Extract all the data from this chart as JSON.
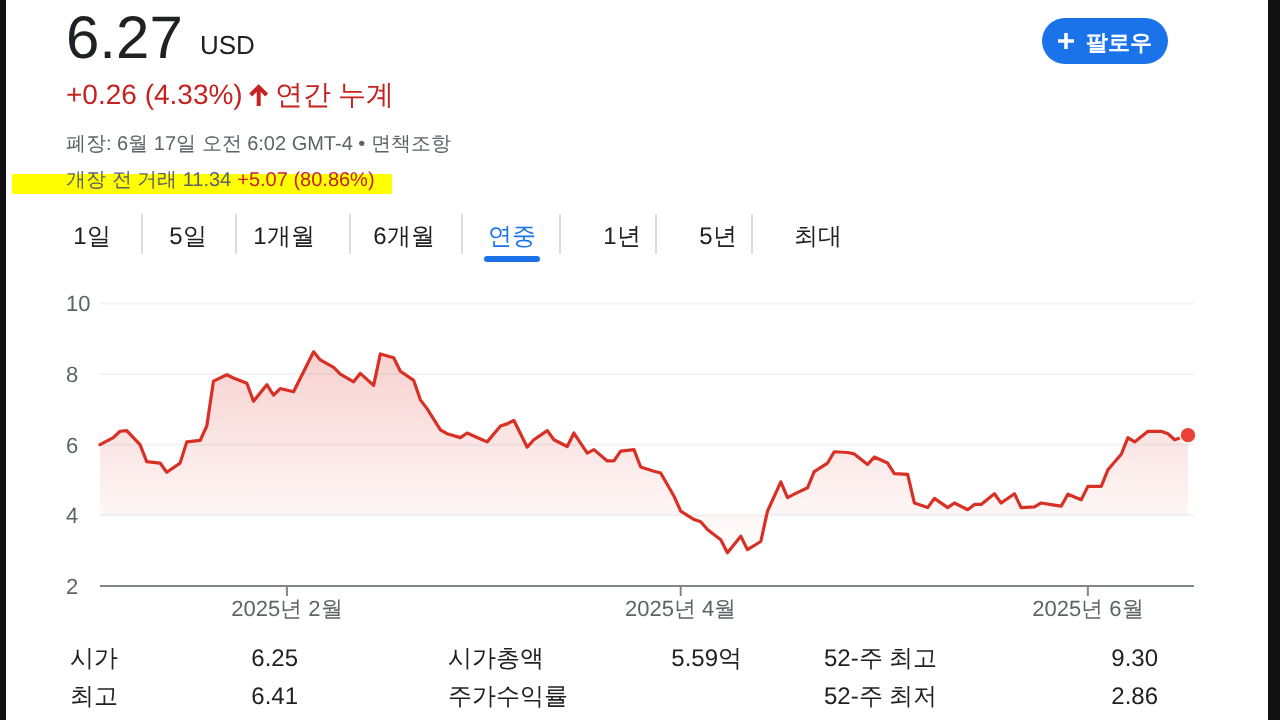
{
  "chart_data": {
    "type": "area",
    "title": "6.27",
    "subtitle": "+0.26 (4.33%)",
    "annotations": [
      "USD",
      "연간 누계",
      "폐장: 6월 17일 오전 6:02 GMT-4 • 면책조항",
      "개장 전 거래 11.34",
      "+5.07 (80.86%)",
      "팔로우",
      "1일",
      "5일",
      "1개월",
      "6개월",
      "연중",
      "1년",
      "5년",
      "최대",
      "시가",
      "6.25",
      "시가총액",
      "5.59억",
      "52-주 최고",
      "9.30",
      "최고",
      "6.41",
      "주가수익률",
      "52-주 최저",
      "2.86"
    ],
    "x": [
      "2025-01-04",
      "2025-01-06",
      "2025-01-07",
      "2025-01-08",
      "2025-01-10",
      "2025-01-11",
      "2025-01-13",
      "2025-01-14",
      "2025-01-16",
      "2025-01-17",
      "2025-01-19",
      "2025-01-20",
      "2025-01-21",
      "2025-01-23",
      "2025-01-24",
      "2025-01-26",
      "2025-01-27",
      "2025-01-29",
      "2025-01-30",
      "2025-01-31",
      "2025-02-02",
      "2025-02-05",
      "2025-02-06",
      "2025-02-08",
      "2025-02-09",
      "2025-02-11",
      "2025-02-12",
      "2025-02-14",
      "2025-02-15",
      "2025-02-17",
      "2025-02-18",
      "2025-02-20",
      "2025-02-21",
      "2025-02-22",
      "2025-02-24",
      "2025-02-25",
      "2025-02-27",
      "2025-02-28",
      "2025-03-02",
      "2025-03-03",
      "2025-03-05",
      "2025-03-06",
      "2025-03-07",
      "2025-03-09",
      "2025-03-10",
      "2025-03-12",
      "2025-03-13",
      "2025-03-15",
      "2025-03-16",
      "2025-03-18",
      "2025-03-19",
      "2025-03-21",
      "2025-03-22",
      "2025-03-23",
      "2025-03-25",
      "2025-03-26",
      "2025-03-28",
      "2025-03-29",
      "2025-03-31",
      "2025-04-01",
      "2025-04-03",
      "2025-04-04",
      "2025-04-05",
      "2025-04-07",
      "2025-04-08",
      "2025-04-10",
      "2025-04-11",
      "2025-04-13",
      "2025-04-14",
      "2025-04-16",
      "2025-04-17",
      "2025-04-18",
      "2025-04-20",
      "2025-04-21",
      "2025-04-23",
      "2025-04-24",
      "2025-04-26",
      "2025-04-27",
      "2025-04-29",
      "2025-04-30",
      "2025-05-02",
      "2025-05-03",
      "2025-05-05",
      "2025-05-06",
      "2025-05-08",
      "2025-05-09",
      "2025-05-11",
      "2025-05-12",
      "2025-05-14",
      "2025-05-15",
      "2025-05-16",
      "2025-05-18",
      "2025-05-19",
      "2025-05-21",
      "2025-05-22",
      "2025-05-24",
      "2025-05-25",
      "2025-05-27",
      "2025-05-28",
      "2025-05-29",
      "2025-05-31",
      "2025-06-01",
      "2025-06-03",
      "2025-06-04",
      "2025-06-06",
      "2025-06-07",
      "2025-06-08",
      "2025-06-10",
      "2025-06-12",
      "2025-06-13",
      "2025-06-14",
      "2025-06-16"
    ],
    "values": [
      6.0,
      6.2,
      6.38,
      6.4,
      6.0,
      5.52,
      5.48,
      5.22,
      5.48,
      6.08,
      6.12,
      6.53,
      7.8,
      7.98,
      7.89,
      7.74,
      7.23,
      7.7,
      7.4,
      7.59,
      7.5,
      8.63,
      8.4,
      8.19,
      8.0,
      7.78,
      8.02,
      7.68,
      8.57,
      8.46,
      8.08,
      7.82,
      7.27,
      7.02,
      6.42,
      6.31,
      6.2,
      6.33,
      6.16,
      6.08,
      6.53,
      6.59,
      6.69,
      5.93,
      6.14,
      6.4,
      6.14,
      5.95,
      6.33,
      5.76,
      5.86,
      5.54,
      5.54,
      5.82,
      5.86,
      5.37,
      5.25,
      5.2,
      4.54,
      4.12,
      3.88,
      3.82,
      3.6,
      3.31,
      2.94,
      3.41,
      3.03,
      3.26,
      4.12,
      4.95,
      4.5,
      4.6,
      4.78,
      5.24,
      5.48,
      5.8,
      5.78,
      5.74,
      5.44,
      5.65,
      5.48,
      5.18,
      5.16,
      4.35,
      4.22,
      4.48,
      4.22,
      4.35,
      4.16,
      4.31,
      4.31,
      4.61,
      4.35,
      4.61,
      4.22,
      4.24,
      4.35,
      4.29,
      4.26,
      4.6,
      4.44,
      4.82,
      4.82,
      5.29,
      5.73,
      6.2,
      6.08,
      6.38,
      6.38,
      6.31,
      6.14,
      6.27
    ],
    "color": "#d93025",
    "xlim": [
      "2025-01-04",
      "2025-06-16"
    ],
    "xticks": [
      {
        "value": "2025-02-01",
        "label": "2025년 2월"
      },
      {
        "value": "2025-04-01",
        "label": "2025년 4월"
      },
      {
        "value": "2025-06-01",
        "label": "2025년 6월"
      }
    ],
    "ylim": [
      2,
      10
    ],
    "yticks": [
      2,
      4,
      6,
      8,
      10
    ],
    "grid": "y"
  }
}
